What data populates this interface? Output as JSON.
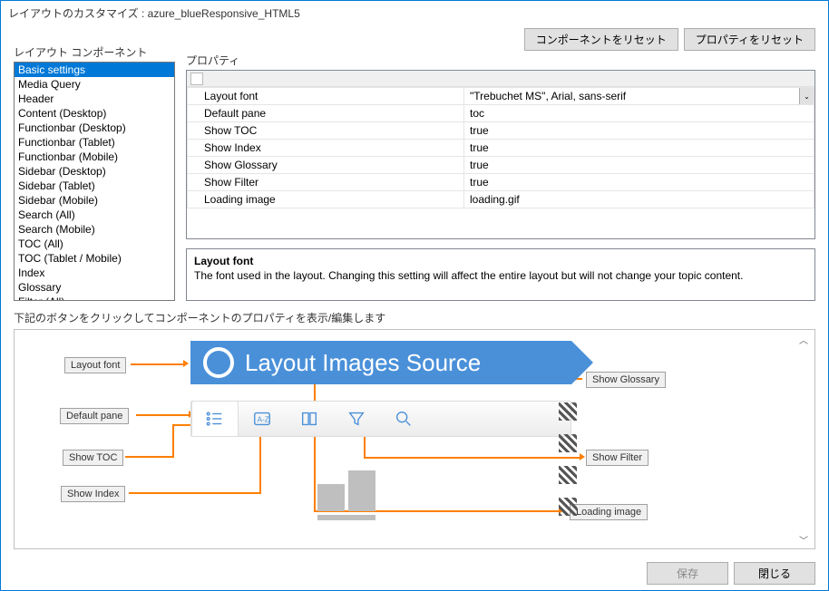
{
  "window": {
    "title": "レイアウトのカスタマイズ : azure_blueResponsive_HTML5"
  },
  "labels": {
    "components": "レイアウト コンポーネント",
    "properties": "プロパティ",
    "instruction": "下記のボタンをクリックしてコンポーネントのプロパティを表示/編集します"
  },
  "buttons": {
    "resetComponent": "コンポーネントをリセット",
    "resetProperty": "プロパティをリセット",
    "save": "保存",
    "close": "閉じる"
  },
  "componentList": {
    "selectedIndex": 0,
    "items": [
      "Basic settings",
      "Media Query",
      "Header",
      "Content (Desktop)",
      "Functionbar (Desktop)",
      "Functionbar (Tablet)",
      "Functionbar (Mobile)",
      "Sidebar (Desktop)",
      "Sidebar (Tablet)",
      "Sidebar (Mobile)",
      "Search (All)",
      "Search (Mobile)",
      "TOC (All)",
      "TOC (Tablet / Mobile)",
      "Index",
      "Glossary",
      "Filter (All)"
    ]
  },
  "properties": [
    {
      "name": "Layout font",
      "value": "\"Trebuchet MS\", Arial, sans-serif",
      "dropdown": true
    },
    {
      "name": "Default pane",
      "value": "toc"
    },
    {
      "name": "Show TOC",
      "value": "true"
    },
    {
      "name": "Show Index",
      "value": "true"
    },
    {
      "name": "Show Glossary",
      "value": "true"
    },
    {
      "name": "Show Filter",
      "value": "true"
    },
    {
      "name": "Loading image",
      "value": "loading.gif"
    }
  ],
  "description": {
    "title": "Layout font",
    "text": "The font used in the layout. Changing this setting will affect the entire layout but will not change your topic content."
  },
  "preview": {
    "bannerText": "Layout Images Source",
    "tags": {
      "layoutFont": "Layout font",
      "defaultPane": "Default pane",
      "showToc": "Show TOC",
      "showIndex": "Show Index",
      "showGlossary": "Show Glossary",
      "showFilter": "Show Filter",
      "loadingImage": "Loading image"
    }
  },
  "colors": {
    "accent": "#4a90d9",
    "connector": "#ff7f00",
    "selection": "#0078d7"
  }
}
